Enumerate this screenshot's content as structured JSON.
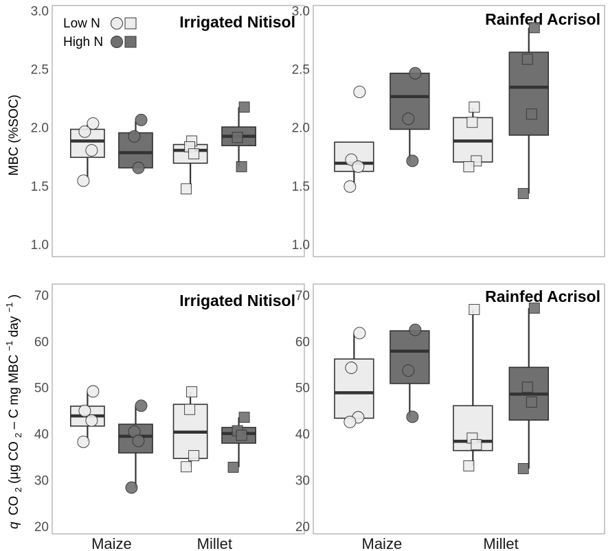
{
  "colors": {
    "low_n_fill": "#ececec",
    "high_n_fill": "#707070",
    "median": "#333333",
    "outline": "#333333",
    "frame": "#a6a6a6"
  },
  "legend": {
    "low_label": "Low N",
    "high_label": "High N",
    "markers": [
      "circle",
      "square"
    ]
  },
  "y_labels": {
    "top": "MBC (%SOC)",
    "bottom_prefix": "q",
    "bottom_main": "CO",
    "bottom_sub": "2",
    "bottom_rest_1": " (μg CO",
    "bottom_rest_2": " – C mg MBC",
    "bottom_sup1": "−1",
    "bottom_rest_3": " day",
    "bottom_sup2": "−1",
    "bottom_close": ")"
  },
  "chart_data": [
    {
      "type": "box",
      "title": "Irrigated Nitisol",
      "ylabel": "MBC (%SOC)",
      "ylim": [
        0.9,
        3.05
      ],
      "yticks": [
        1.0,
        1.5,
        2.0,
        2.5,
        3.0
      ],
      "tick_labels": [
        "1.0",
        "1.5",
        "2.0",
        "2.5",
        "3.0"
      ],
      "categories": [
        "Maize",
        "Millet"
      ],
      "boxes": [
        {
          "category": "Maize",
          "treatment": "Low N",
          "marker": "circle",
          "q1": 1.75,
          "median": 1.89,
          "q3": 1.99,
          "whisker_low": 1.57,
          "whisker_high": 2.03,
          "points": [
            2.04,
            1.97,
            1.81,
            1.55
          ]
        },
        {
          "category": "Maize",
          "treatment": "High N",
          "marker": "circle",
          "q1": 1.66,
          "median": 1.79,
          "q3": 1.96,
          "whisker_low": 1.66,
          "whisker_high": 2.06,
          "points": [
            2.07,
            1.93,
            1.66
          ]
        },
        {
          "category": "Millet",
          "treatment": "Low N",
          "marker": "square",
          "q1": 1.7,
          "median": 1.81,
          "q3": 1.86,
          "whisker_low": 1.48,
          "whisker_high": 1.89,
          "points": [
            1.89,
            1.84,
            1.78,
            1.48
          ]
        },
        {
          "category": "Millet",
          "treatment": "High N",
          "marker": "square",
          "q1": 1.85,
          "median": 1.93,
          "q3": 2.01,
          "whisker_low": 1.67,
          "whisker_high": 2.18,
          "points": [
            2.18,
            1.92,
            1.67
          ]
        }
      ]
    },
    {
      "type": "box",
      "title": "Rainfed Acrisol",
      "ylabel": "",
      "ylim": [
        0.9,
        3.05
      ],
      "yticks": [
        1.0,
        1.5,
        2.0,
        2.5,
        3.0
      ],
      "tick_labels": [
        "1.0",
        "1.5",
        "2.0",
        "2.5",
        "3.0"
      ],
      "categories": [
        "Maize",
        "Millet"
      ],
      "boxes": [
        {
          "category": "Maize",
          "treatment": "Low N",
          "marker": "circle",
          "q1": 1.63,
          "median": 1.7,
          "q3": 1.88,
          "whisker_low": 1.5,
          "whisker_high": 1.88,
          "points": [
            2.31,
            1.73,
            1.67,
            1.5
          ]
        },
        {
          "category": "Maize",
          "treatment": "High N",
          "marker": "circle",
          "q1": 1.99,
          "median": 2.27,
          "q3": 2.47,
          "whisker_low": 1.72,
          "whisker_high": 2.47,
          "points": [
            2.47,
            2.08,
            1.72
          ]
        },
        {
          "category": "Millet",
          "treatment": "Low N",
          "marker": "square",
          "q1": 1.71,
          "median": 1.89,
          "q3": 2.09,
          "whisker_low": 1.67,
          "whisker_high": 2.17,
          "points": [
            2.18,
            2.05,
            1.72,
            1.67
          ]
        },
        {
          "category": "Millet",
          "treatment": "High N",
          "marker": "square",
          "q1": 1.94,
          "median": 2.35,
          "q3": 2.65,
          "whisker_low": 1.44,
          "whisker_high": 2.86,
          "points": [
            2.86,
            2.59,
            2.12,
            1.44
          ]
        }
      ]
    },
    {
      "type": "box",
      "title": "Irrigated Nitisol",
      "ylabel": "q CO2 (μg CO2 – C mg MBC−1 day−1)",
      "ylim": [
        18.5,
        72.5
      ],
      "yticks": [
        20,
        30,
        40,
        50,
        60,
        70
      ],
      "tick_labels": [
        "20",
        "30",
        "40",
        "50",
        "60",
        "70"
      ],
      "categories": [
        "Maize",
        "Millet"
      ],
      "boxes": [
        {
          "category": "Maize",
          "treatment": "Low N",
          "marker": "circle",
          "q1": 41.8,
          "median": 44.0,
          "q3": 46.1,
          "whisker_low": 38.4,
          "whisker_high": 49.3,
          "points": [
            49.3,
            45.1,
            43.0,
            38.4
          ]
        },
        {
          "category": "Maize",
          "treatment": "High N",
          "marker": "circle",
          "q1": 36.0,
          "median": 39.6,
          "q3": 42.2,
          "whisker_low": 28.5,
          "whisker_high": 46.2,
          "points": [
            46.2,
            40.6,
            38.6,
            28.5
          ]
        },
        {
          "category": "Millet",
          "treatment": "Low N",
          "marker": "square",
          "q1": 34.8,
          "median": 40.5,
          "q3": 46.5,
          "whisker_low": 33.0,
          "whisker_high": 49.2,
          "points": [
            49.2,
            45.4,
            35.4,
            33.0
          ]
        },
        {
          "category": "Millet",
          "treatment": "High N",
          "marker": "square",
          "q1": 38.1,
          "median": 40.2,
          "q3": 41.5,
          "whisker_low": 32.9,
          "whisker_high": 43.7,
          "points": [
            43.7,
            40.8,
            39.8,
            32.9
          ]
        }
      ]
    },
    {
      "type": "box",
      "title": "Rainfed Acrisol",
      "ylabel": "",
      "ylim": [
        18.5,
        72.5
      ],
      "yticks": [
        20,
        30,
        40,
        50,
        60,
        70
      ],
      "tick_labels": [
        "20",
        "30",
        "40",
        "50",
        "60",
        "70"
      ],
      "categories": [
        "Maize",
        "Millet"
      ],
      "boxes": [
        {
          "category": "Maize",
          "treatment": "Low N",
          "marker": "circle",
          "q1": 43.5,
          "median": 49.0,
          "q3": 56.3,
          "whisker_low": 42.7,
          "whisker_high": 61.9,
          "points": [
            61.9,
            54.4,
            43.7,
            42.7
          ]
        },
        {
          "category": "Maize",
          "treatment": "High N",
          "marker": "circle",
          "q1": 51.0,
          "median": 58.0,
          "q3": 62.4,
          "whisker_low": 43.8,
          "whisker_high": 62.6,
          "points": [
            62.6,
            53.8,
            43.8
          ]
        },
        {
          "category": "Millet",
          "treatment": "Low N",
          "marker": "square",
          "q1": 36.5,
          "median": 38.5,
          "q3": 46.2,
          "whisker_low": 33.2,
          "whisker_high": 67.0,
          "points": [
            67.0,
            39.2,
            37.8,
            33.2
          ]
        },
        {
          "category": "Millet",
          "treatment": "High N",
          "marker": "square",
          "q1": 43.1,
          "median": 48.7,
          "q3": 54.5,
          "whisker_low": 32.6,
          "whisker_high": 67.3,
          "points": [
            67.3,
            50.2,
            47.0,
            32.6
          ]
        }
      ]
    }
  ]
}
